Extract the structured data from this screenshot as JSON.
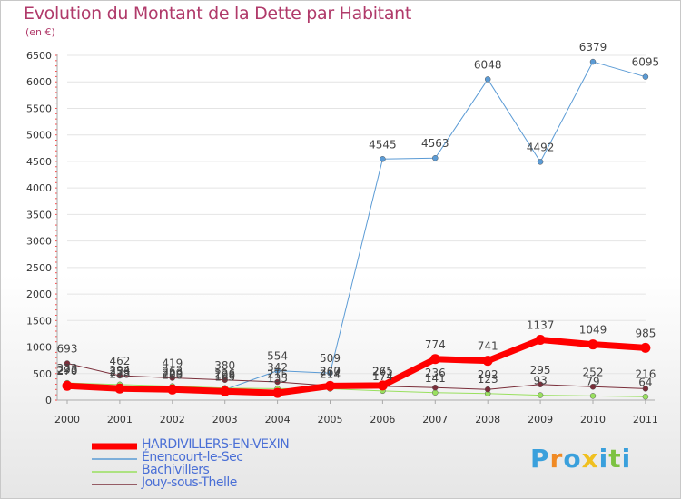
{
  "header": {
    "title": "Evolution du Montant de la Dette par Habitant",
    "subtitle": "(en €)"
  },
  "chart_data": {
    "type": "line",
    "ylim": [
      0,
      6500
    ],
    "yticks": [
      0,
      500,
      1000,
      1500,
      2000,
      2500,
      3000,
      3500,
      4000,
      4500,
      5000,
      5500,
      6000,
      6500
    ],
    "categories": [
      "2000",
      "2001",
      "2002",
      "2003",
      "2004",
      "2005",
      "2006",
      "2007",
      "2008",
      "2009",
      "2010",
      "2011"
    ],
    "series": [
      {
        "name": "HARDIVILLERS-EN-VEXIN",
        "color": "#ff0000",
        "width": 7,
        "values": [
          270,
          218,
          200,
          165,
          135,
          267,
          275,
          774,
          741,
          1137,
          1049,
          985
        ],
        "labels": [
          "270",
          "218",
          "200",
          "165",
          "135",
          "267",
          "275",
          "774",
          "741",
          "1137",
          "1049",
          "985"
        ]
      },
      {
        "name": "Énencourt-le-Sec",
        "color": "#5b9bd5",
        "width": 1,
        "values": [
          293,
          253,
          229,
          198,
          554,
          509,
          4545,
          4563,
          6048,
          4492,
          6379,
          6095
        ],
        "labels": [
          "293",
          "253",
          "229",
          "198",
          "554",
          "509",
          "4545",
          "4563",
          "6048",
          "4492",
          "6379",
          "6095"
        ]
      },
      {
        "name": "Bachivillers",
        "color": "#99e05f",
        "width": 1,
        "values": [
          323,
          294,
          263,
          226,
          215,
          214,
          174,
          141,
          123,
          93,
          79,
          64
        ],
        "labels": [
          "323",
          "294",
          "263",
          "226",
          "215",
          "214",
          "174",
          "141",
          "123",
          "93",
          "79",
          "64"
        ]
      },
      {
        "name": "Jouy-sous-Thelle",
        "color": "#7a2e3a",
        "width": 1,
        "values": [
          693,
          462,
          419,
          380,
          342,
          270,
          261,
          236,
          202,
          295,
          252,
          216
        ],
        "labels": [
          "693",
          "462",
          "419",
          "380",
          "342",
          "270",
          "261",
          "236",
          "202",
          "295",
          "252",
          "216"
        ]
      }
    ]
  },
  "logo": {
    "text": "Proxiti",
    "letters": [
      "P",
      "r",
      "o",
      "x",
      "i",
      "t",
      "i"
    ],
    "colors": [
      "#3aa0dc",
      "#f08a24",
      "#3aa0dc",
      "#f0c020",
      "#3aa0dc",
      "#7cc242",
      "#3aa0dc"
    ]
  }
}
